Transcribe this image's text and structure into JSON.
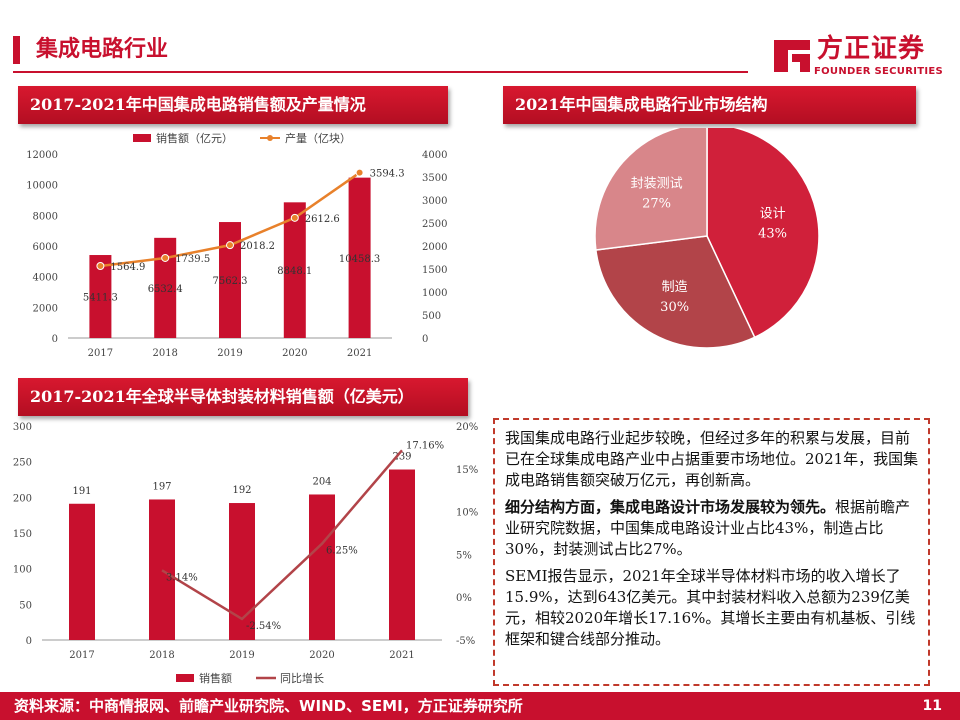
{
  "header": {
    "title": "集成电路行业"
  },
  "logo": {
    "name": "方正证券",
    "subtitle": "FOUNDER SECURITIES"
  },
  "colors": {
    "brand": "#c8102e",
    "line": "#e8812b",
    "pie_design": "#d0203a",
    "pie_mfg": "#b24449",
    "pie_pack": "#d8868a"
  },
  "charts": {
    "sales": {
      "header": "2017-2021年中国集成电路销售额及产量情况"
    },
    "structure": {
      "header": "2021年中国集成电路行业市场结构"
    },
    "packaging": {
      "header": "2017-2021年全球半导体封装材料销售额（亿美元）"
    }
  },
  "chart_data": [
    {
      "type": "bar",
      "title": "2017-2021年中国集成电路销售额及产量情况",
      "categories": [
        "2017",
        "2018",
        "2019",
        "2020",
        "2021"
      ],
      "series": [
        {
          "name": "销售额（亿元）",
          "type": "bar",
          "axis": "left",
          "values": [
            5411.3,
            6532.4,
            7562.3,
            8848.1,
            10458.3
          ],
          "labels": [
            "5411.3",
            "6532.4",
            "7562.3",
            "8848.1",
            "10458.3"
          ]
        },
        {
          "name": "产量（亿块）",
          "type": "line",
          "axis": "right",
          "values": [
            1564.9,
            1739.5,
            2018.2,
            2612.6,
            3594.3
          ],
          "labels": [
            "1564.9",
            "1739.5",
            "2018.2",
            "2612.6",
            "3594.3"
          ]
        }
      ],
      "ylim_left": [
        0,
        12000
      ],
      "ylim_right": [
        0,
        4000
      ],
      "yticks_left": [
        "0",
        "2000",
        "4000",
        "6000",
        "8000",
        "10000",
        "12000"
      ],
      "yticks_right": [
        "0",
        "500",
        "1000",
        "1500",
        "2000",
        "2500",
        "3000",
        "3500",
        "4000"
      ],
      "legend": "top"
    },
    {
      "type": "pie",
      "title": "2021年中国集成电路行业市场结构",
      "slices": [
        {
          "label": "设计",
          "value": 43,
          "pct": "43%"
        },
        {
          "label": "制造",
          "value": 30,
          "pct": "30%"
        },
        {
          "label": "封装测试",
          "value": 27,
          "pct": "27%"
        }
      ]
    },
    {
      "type": "bar",
      "title": "2017-2021年全球半导体封装材料销售额（亿美元）",
      "categories": [
        "2017",
        "2018",
        "2019",
        "2020",
        "2021"
      ],
      "series": [
        {
          "name": "销售额",
          "type": "bar",
          "axis": "left",
          "values": [
            191,
            197,
            192,
            204,
            239
          ],
          "labels": [
            "191",
            "197",
            "192",
            "204",
            "239"
          ]
        },
        {
          "name": "同比增长",
          "type": "line",
          "axis": "right",
          "values": [
            null,
            3.14,
            -2.54,
            6.25,
            17.16
          ],
          "labels": [
            "",
            "3.14%",
            "-2.54%",
            "6.25%",
            "17.16%"
          ]
        }
      ],
      "ylim_left": [
        0,
        300
      ],
      "ylim_right": [
        -5,
        20
      ],
      "yticks_left": [
        "0",
        "50",
        "100",
        "150",
        "200",
        "250",
        "300"
      ],
      "yticks_right": [
        "-5%",
        "0%",
        "5%",
        "10%",
        "15%",
        "20%"
      ],
      "legend": "bottom"
    }
  ],
  "textbox": {
    "p1": "我国集成电路行业起步较晚，但经过多年的积累与发展，目前已在全球集成电路产业中占据重要市场地位。2021年，我国集成电路销售额突破万亿元，再创新高。",
    "p2_bold": "细分结构方面，集成电路设计市场发展较为领先。",
    "p2": "根据前瞻产业研究院数据，中国集成电路设计业占比43%，制造占比30%，封装测试占比27%。",
    "p3": "SEMI报告显示，2021年全球半导体材料市场的收入增长了15.9%，达到643亿美元。其中封装材料收入总额为239亿美元，相较2020年增长17.16%。其增长主要由有机基板、引线框架和键合线部分推动。"
  },
  "footer": {
    "source": "资料来源：中商情报网、前瞻产业研究院、WIND、SEMI，方正证券研究所",
    "page": "11"
  }
}
